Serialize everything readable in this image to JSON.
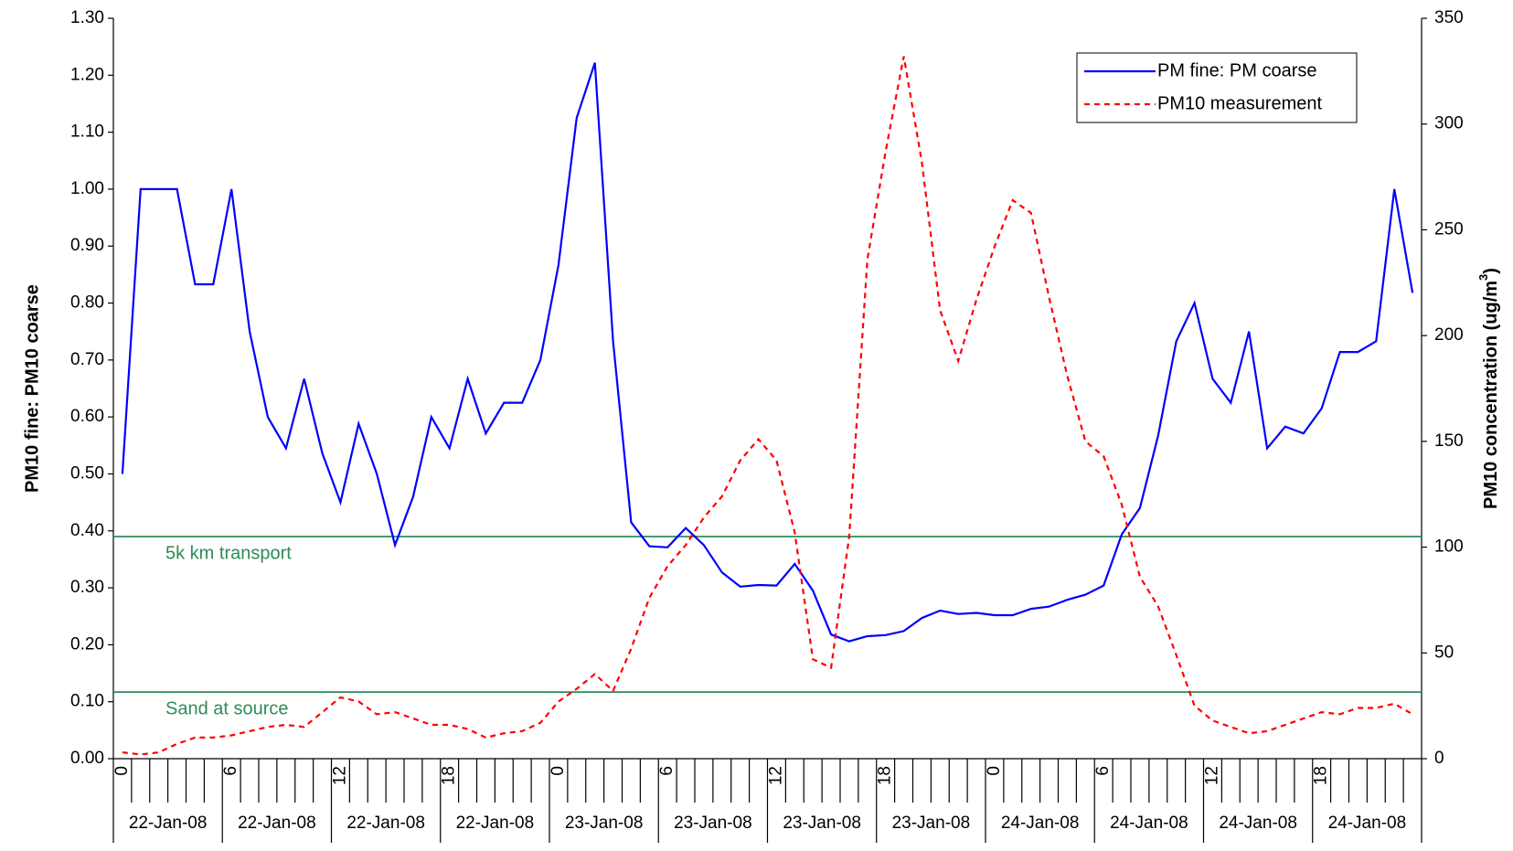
{
  "chart_data": {
    "type": "line",
    "categories": [
      "0",
      null,
      null,
      null,
      null,
      null,
      "6",
      null,
      null,
      null,
      null,
      null,
      "12",
      null,
      null,
      null,
      null,
      null,
      "18",
      null,
      null,
      null,
      null,
      null,
      "0",
      null,
      null,
      null,
      null,
      null,
      "6",
      null,
      null,
      null,
      null,
      null,
      "12",
      null,
      null,
      null,
      null,
      null,
      "18",
      null,
      null,
      null,
      null,
      null,
      "0",
      null,
      null,
      null,
      null,
      null,
      "6",
      null,
      null,
      null,
      null,
      null,
      "12",
      null,
      null,
      null,
      null,
      null,
      "18",
      null,
      null,
      null,
      null,
      null
    ],
    "groups": [
      "22-Jan-08",
      "22-Jan-08",
      "22-Jan-08",
      "22-Jan-08",
      "23-Jan-08",
      "23-Jan-08",
      "23-Jan-08",
      "23-Jan-08",
      "24-Jan-08",
      "24-Jan-08",
      "24-Jan-08",
      "24-Jan-08"
    ],
    "series": [
      {
        "name": "PM fine: PM coarse",
        "color": "#0000ff",
        "style": "solid",
        "axis": "y",
        "values": [
          0.5,
          1.0,
          1.0,
          1.0,
          0.833,
          0.833,
          1.0,
          0.75,
          0.6,
          0.545,
          0.667,
          0.536,
          0.45,
          0.588,
          0.5,
          0.375,
          0.46,
          0.6,
          0.545,
          0.667,
          0.571,
          0.625,
          0.625,
          0.7,
          0.867,
          1.125,
          1.222,
          0.733,
          0.415,
          0.373,
          0.371,
          0.405,
          0.375,
          0.327,
          0.302,
          0.305,
          0.304,
          0.342,
          0.295,
          0.218,
          0.206,
          0.215,
          0.217,
          0.224,
          0.247,
          0.26,
          0.254,
          0.256,
          0.252,
          0.252,
          0.263,
          0.267,
          0.279,
          0.288,
          0.304,
          0.394,
          0.44,
          0.567,
          0.733,
          0.8,
          0.667,
          0.625,
          0.75,
          0.545,
          0.583,
          0.571,
          0.615,
          0.714,
          0.714,
          0.733,
          1.0,
          0.818
        ]
      },
      {
        "name": "PM10 measurement",
        "color": "#ff0000",
        "style": "dashed",
        "axis": "y2",
        "values": [
          3,
          2,
          3,
          7,
          10,
          10,
          11,
          13,
          15,
          16,
          15,
          22,
          29,
          27,
          21,
          22,
          19,
          16,
          16,
          14,
          10,
          12,
          13,
          17,
          27,
          33,
          40,
          32,
          52,
          76,
          91,
          101,
          114,
          124,
          141,
          151,
          141,
          107,
          47,
          43,
          105,
          236,
          287,
          332,
          282,
          212,
          188,
          217,
          242,
          264,
          258,
          218,
          181,
          150,
          143,
          120,
          86,
          72,
          49,
          25,
          18,
          15,
          12,
          13,
          16,
          19,
          22,
          21,
          24,
          24,
          26,
          21
        ]
      }
    ],
    "ylabel": "PM10 fine: PM10 coarse",
    "y2label": {
      "text": "PM10 concentration (ug/m",
      "sup": "3",
      "end": ")"
    },
    "ylim": [
      0,
      1.3
    ],
    "yticks": [
      {
        "value": 0,
        "label": "0.00"
      },
      {
        "value": 0.1,
        "label": "0.10"
      },
      {
        "value": 0.2,
        "label": "0.20"
      },
      {
        "value": 0.3,
        "label": "0.30"
      },
      {
        "value": 0.4,
        "label": "0.40"
      },
      {
        "value": 0.5,
        "label": "0.50"
      },
      {
        "value": 0.6,
        "label": "0.60"
      },
      {
        "value": 0.7,
        "label": "0.70"
      },
      {
        "value": 0.8,
        "label": "0.80"
      },
      {
        "value": 0.9,
        "label": "0.90"
      },
      {
        "value": 1,
        "label": "1.00"
      },
      {
        "value": 1.1,
        "label": "1.10"
      },
      {
        "value": 1.2,
        "label": "1.20"
      },
      {
        "value": 1.3,
        "label": "1.30"
      }
    ],
    "y2lim": [
      0,
      350
    ],
    "y2ticks": [
      0,
      50,
      100,
      150,
      200,
      250,
      300,
      350
    ],
    "reference_lines": [
      {
        "value": 0.39,
        "label": "5k km transport",
        "color": "#2e8b57"
      },
      {
        "value": 0.117,
        "label": "Sand at source",
        "color": "#2e8b57"
      }
    ],
    "legend": "top-right"
  }
}
